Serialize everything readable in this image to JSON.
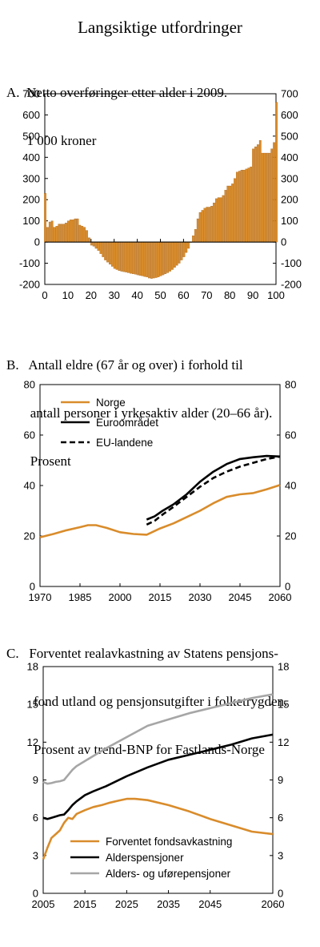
{
  "page": {
    "title": "Langsiktige utfordringer"
  },
  "colors": {
    "orange": "#D98C2B",
    "black": "#000000",
    "gray": "#A6A6A6",
    "bar_edge": "#A05A10"
  },
  "chart_data": [
    {
      "id": "A",
      "type": "bar",
      "title_lines": [
        "A.  Netto overføringer etter alder i 2009.",
        "      1 000 kroner"
      ],
      "xlabel": "",
      "ylabel": "",
      "xlim": [
        0,
        100
      ],
      "xticks": [
        0,
        10,
        20,
        30,
        40,
        50,
        60,
        70,
        80,
        90,
        100
      ],
      "ylim": [
        -200,
        700
      ],
      "yticks": [
        -200,
        -100,
        0,
        100,
        200,
        300,
        400,
        500,
        600,
        700
      ],
      "grid": false,
      "categories": [
        0,
        1,
        2,
        3,
        4,
        5,
        6,
        7,
        8,
        9,
        10,
        11,
        12,
        13,
        14,
        15,
        16,
        17,
        18,
        19,
        20,
        21,
        22,
        23,
        24,
        25,
        26,
        27,
        28,
        29,
        30,
        31,
        32,
        33,
        34,
        35,
        36,
        37,
        38,
        39,
        40,
        41,
        42,
        43,
        44,
        45,
        46,
        47,
        48,
        49,
        50,
        51,
        52,
        53,
        54,
        55,
        56,
        57,
        58,
        59,
        60,
        61,
        62,
        63,
        64,
        65,
        66,
        67,
        68,
        69,
        70,
        71,
        72,
        73,
        74,
        75,
        76,
        77,
        78,
        79,
        80,
        81,
        82,
        83,
        84,
        85,
        86,
        87,
        88,
        89,
        90,
        91,
        92,
        93,
        94,
        95,
        96,
        97,
        98,
        99,
        100
      ],
      "values": [
        230,
        70,
        95,
        100,
        70,
        75,
        85,
        85,
        85,
        90,
        100,
        105,
        105,
        110,
        110,
        80,
        75,
        70,
        55,
        20,
        -15,
        -20,
        -30,
        -40,
        -55,
        -70,
        -85,
        -95,
        -105,
        -115,
        -125,
        -130,
        -135,
        -138,
        -140,
        -142,
        -145,
        -148,
        -150,
        -152,
        -155,
        -158,
        -160,
        -163,
        -165,
        -170,
        -172,
        -170,
        -168,
        -165,
        -160,
        -155,
        -150,
        -145,
        -138,
        -130,
        -120,
        -110,
        -100,
        -85,
        -70,
        -50,
        -30,
        0,
        30,
        60,
        110,
        140,
        150,
        160,
        165,
        165,
        170,
        185,
        205,
        210,
        210,
        220,
        245,
        265,
        265,
        275,
        300,
        330,
        335,
        340,
        340,
        345,
        350,
        355,
        440,
        450,
        460,
        480,
        420,
        420,
        420,
        420,
        440,
        470,
        660
      ]
    },
    {
      "id": "B",
      "type": "line",
      "title_lines": [
        "B.   Antall eldre (67 år og over) i forhold til",
        "       antall personer i yrkesaktiv alder (20–66 år).",
        "       Prosent"
      ],
      "xlabel": "",
      "ylabel": "",
      "xlim": [
        1970,
        2060
      ],
      "xticks": [
        1970,
        1985,
        2000,
        2015,
        2030,
        2045,
        2060
      ],
      "ylim": [
        0,
        80
      ],
      "yticks": [
        0,
        20,
        40,
        60,
        80
      ],
      "grid": false,
      "legend": "top-left",
      "series": [
        {
          "name": "Norge",
          "color": "#D98C2B",
          "dash": "",
          "x": [
            1970,
            1975,
            1980,
            1985,
            1988,
            1991,
            1995,
            2000,
            2005,
            2010,
            2012,
            2015,
            2020,
            2025,
            2030,
            2035,
            2040,
            2045,
            2050,
            2055,
            2060
          ],
          "y": [
            19.5,
            20.8,
            22.3,
            23.5,
            24.3,
            24.3,
            23.2,
            21.5,
            20.8,
            20.5,
            21.5,
            23,
            25,
            27.5,
            30,
            33,
            35.5,
            36.5,
            37,
            38.5,
            40.2
          ]
        },
        {
          "name": "Euroområdet",
          "color": "#000000",
          "dash": "",
          "x": [
            2010,
            2013,
            2016,
            2020,
            2025,
            2030,
            2035,
            2040,
            2045,
            2050,
            2055,
            2060
          ],
          "y": [
            26.5,
            27.8,
            30,
            32.5,
            36.5,
            41.5,
            45.5,
            48.5,
            50.5,
            51.2,
            51.7,
            51.5
          ]
        },
        {
          "name": "EU-landene",
          "color": "#000000",
          "dash": "7,4",
          "x": [
            2010,
            2013,
            2016,
            2020,
            2025,
            2030,
            2035,
            2040,
            2045,
            2050,
            2055,
            2060
          ],
          "y": [
            24.5,
            26,
            28.5,
            31.5,
            35.5,
            39.5,
            43,
            45.5,
            47.5,
            49,
            50.5,
            51.5
          ]
        }
      ]
    },
    {
      "id": "C",
      "type": "line",
      "title_lines": [
        "C.   Forventet realavkastning av Statens pensjons-",
        "        fond utland og pensjonsutgifter i folketrygden.",
        "        Prosent av trend-BNP for Fastlands-Norge"
      ],
      "xlabel": "",
      "ylabel": "",
      "xlim": [
        2005,
        2060
      ],
      "xticks": [
        2005,
        2015,
        2025,
        2035,
        2045,
        2060
      ],
      "ylim": [
        0,
        18
      ],
      "yticks": [
        0,
        3,
        6,
        9,
        12,
        15,
        18
      ],
      "grid": false,
      "legend": "bottom-center",
      "series": [
        {
          "name": "Forventet fondsavkastning",
          "color": "#D98C2B",
          "dash": "",
          "x": [
            2005,
            2006,
            2007,
            2008,
            2009,
            2010,
            2011,
            2012,
            2013,
            2015,
            2017,
            2019,
            2021,
            2023,
            2025,
            2027,
            2030,
            2035,
            2040,
            2045,
            2050,
            2055,
            2060
          ],
          "y": [
            2.7,
            3.6,
            4.4,
            4.7,
            5.0,
            5.6,
            6.0,
            5.9,
            6.3,
            6.6,
            6.85,
            7.0,
            7.2,
            7.35,
            7.5,
            7.5,
            7.4,
            7.0,
            6.5,
            5.9,
            5.4,
            4.9,
            4.7
          ]
        },
        {
          "name": "Alderspensjoner",
          "color": "#000000",
          "dash": "",
          "x": [
            2005,
            2006,
            2007,
            2008,
            2009,
            2010,
            2011,
            2012,
            2013,
            2015,
            2017,
            2020,
            2025,
            2030,
            2035,
            2040,
            2045,
            2050,
            2055,
            2060
          ],
          "y": [
            6.0,
            5.9,
            6.0,
            6.1,
            6.2,
            6.25,
            6.6,
            7.0,
            7.3,
            7.8,
            8.1,
            8.5,
            9.3,
            10.0,
            10.6,
            11.0,
            11.4,
            11.8,
            12.3,
            12.6
          ]
        },
        {
          "name": "Alders- og uførepensjoner",
          "color": "#A6A6A6",
          "dash": "",
          "x": [
            2005,
            2006,
            2007,
            2008,
            2009,
            2010,
            2011,
            2012,
            2013,
            2015,
            2017,
            2020,
            2025,
            2030,
            2035,
            2040,
            2045,
            2050,
            2055,
            2060
          ],
          "y": [
            8.85,
            8.7,
            8.75,
            8.85,
            8.9,
            9.0,
            9.4,
            9.8,
            10.1,
            10.5,
            10.9,
            11.5,
            12.4,
            13.3,
            13.8,
            14.3,
            14.7,
            15.1,
            15.5,
            15.8
          ]
        }
      ]
    }
  ]
}
